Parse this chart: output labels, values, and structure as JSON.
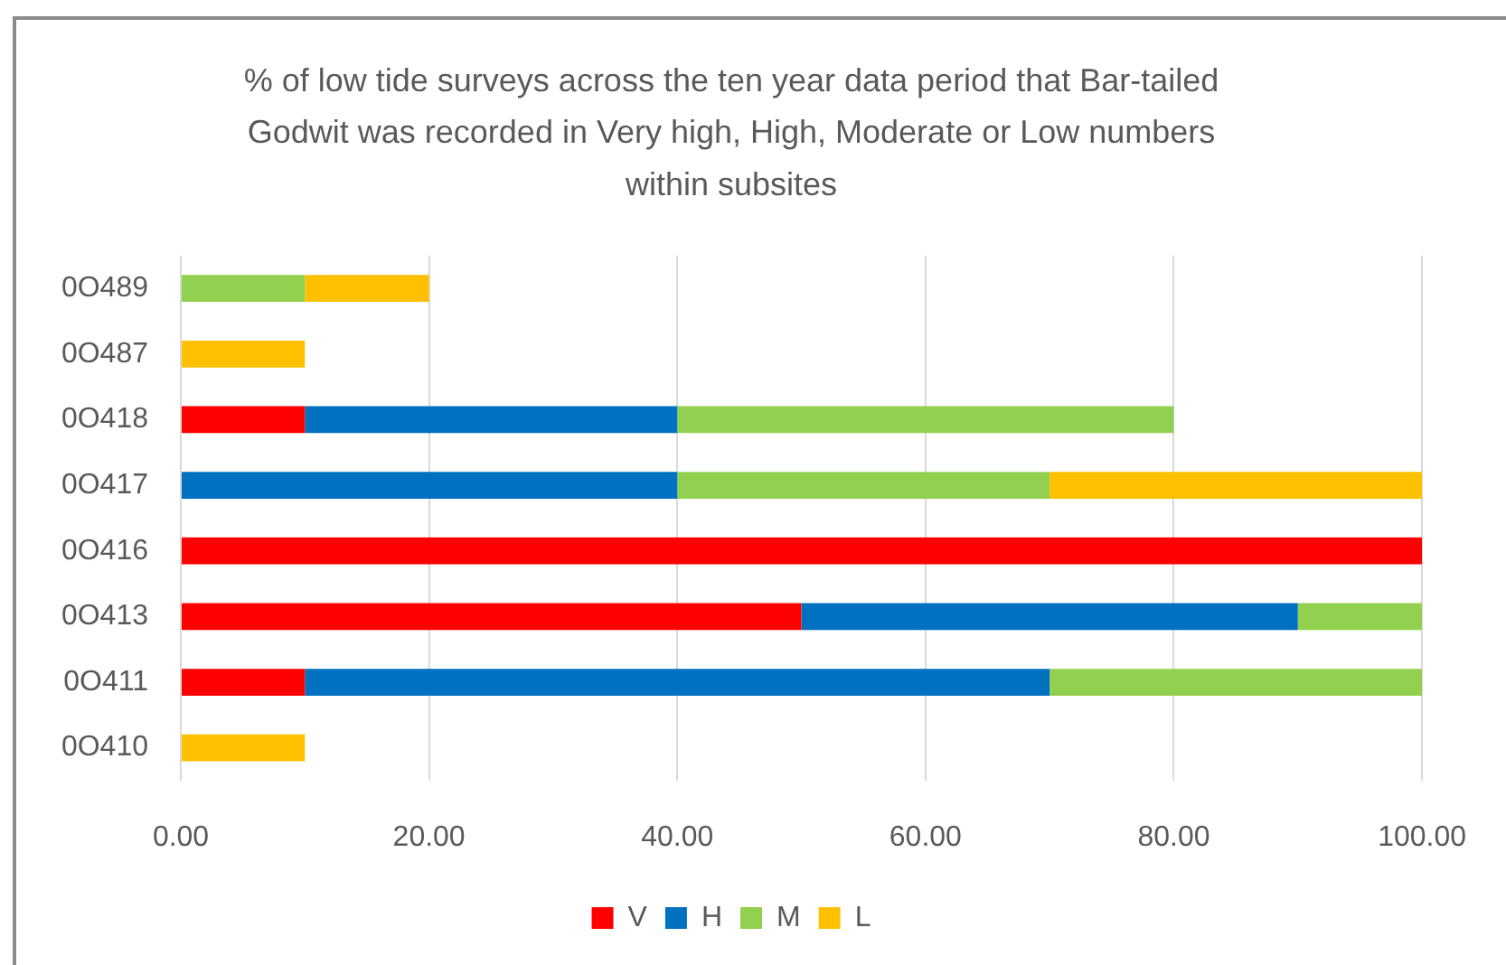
{
  "chart_data": {
    "type": "bar",
    "orientation": "horizontal",
    "stacked": true,
    "title": "% of low tide surveys across the ten year data period that Bar-tailed Godwit was recorded in Very high, High, Moderate or Low numbers within subsites",
    "categories": [
      "0O489",
      "0O487",
      "0O418",
      "0O417",
      "0O416",
      "0O413",
      "0O411",
      "0O410"
    ],
    "series": [
      {
        "name": "V",
        "color": "#ff0000",
        "values": [
          null,
          null,
          10,
          null,
          100,
          50,
          10,
          null
        ]
      },
      {
        "name": "H",
        "color": "#0070c0",
        "values": [
          null,
          null,
          30,
          40,
          null,
          40,
          60,
          null
        ]
      },
      {
        "name": "M",
        "color": "#92d050",
        "values": [
          10,
          null,
          40,
          30,
          null,
          10,
          30,
          null
        ]
      },
      {
        "name": "L",
        "color": "#ffc000",
        "values": [
          10,
          10,
          null,
          30,
          null,
          null,
          null,
          10
        ]
      }
    ],
    "xlim": [
      0,
      100
    ],
    "xticks": [
      {
        "value": 0,
        "label": "0.00"
      },
      {
        "value": 20,
        "label": "20.00"
      },
      {
        "value": 40,
        "label": "40.00"
      },
      {
        "value": 60,
        "label": "60.00"
      },
      {
        "value": 80,
        "label": "80.00"
      },
      {
        "value": 100,
        "label": "100.00"
      }
    ],
    "grid": "x",
    "legend": "bottom"
  }
}
